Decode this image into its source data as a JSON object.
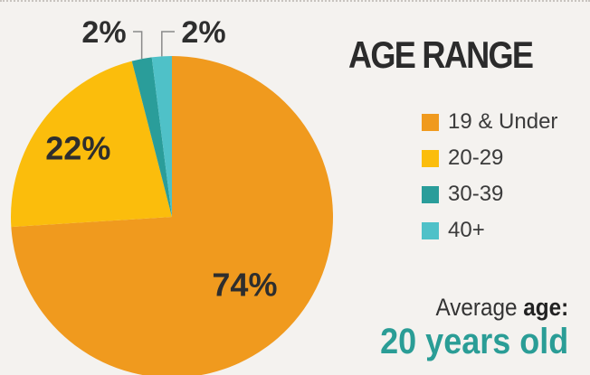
{
  "chart_data": {
    "type": "pie",
    "title": "AGE RANGE",
    "categories": [
      "19 & Under",
      "20-29",
      "30-39",
      "40+"
    ],
    "values": [
      74,
      22,
      2,
      2
    ],
    "value_labels": [
      "74%",
      "22%",
      "2%",
      "2%"
    ],
    "colors": [
      "#f09a1e",
      "#fbbd0c",
      "#2a9d9a",
      "#4fc1c8"
    ],
    "legend_position": "right"
  },
  "summary": {
    "prefix": "Average ",
    "emphasis": "age:",
    "value": "20 years old"
  }
}
